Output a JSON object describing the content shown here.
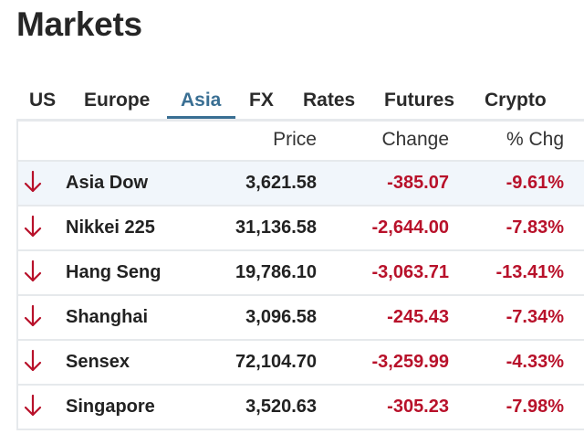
{
  "page": {
    "title": "Markets"
  },
  "tabs": [
    {
      "label": "US",
      "active": false
    },
    {
      "label": "Europe",
      "active": false
    },
    {
      "label": "Asia",
      "active": true
    },
    {
      "label": "FX",
      "active": false
    },
    {
      "label": "Rates",
      "active": false
    },
    {
      "label": "Futures",
      "active": false
    },
    {
      "label": "Crypto",
      "active": false
    }
  ],
  "table": {
    "columns": {
      "price": "Price",
      "change": "Change",
      "pct": "% Chg"
    },
    "rows": [
      {
        "name": "Asia Dow",
        "price": "3,621.58",
        "change": "-385.07",
        "pct": "-9.61%",
        "direction": "down",
        "highlighted": true
      },
      {
        "name": "Nikkei 225",
        "price": "31,136.58",
        "change": "-2,644.00",
        "pct": "-7.83%",
        "direction": "down",
        "highlighted": false
      },
      {
        "name": "Hang Seng",
        "price": "19,786.10",
        "change": "-3,063.71",
        "pct": "-13.41%",
        "direction": "down",
        "highlighted": false
      },
      {
        "name": "Shanghai",
        "price": "3,096.58",
        "change": "-245.43",
        "pct": "-7.34%",
        "direction": "down",
        "highlighted": false
      },
      {
        "name": "Sensex",
        "price": "72,104.70",
        "change": "-3,259.99",
        "pct": "-4.33%",
        "direction": "down",
        "highlighted": false
      },
      {
        "name": "Singapore",
        "price": "3,520.63",
        "change": "-305.23",
        "pct": "-7.98%",
        "direction": "down",
        "highlighted": false
      }
    ]
  },
  "colors": {
    "accent": "#3a6f93",
    "negative": "#b8112a",
    "highlight_row": "#f1f6fb",
    "divider": "#e6e9ec"
  },
  "icons": {
    "down": "arrow-down-icon"
  }
}
